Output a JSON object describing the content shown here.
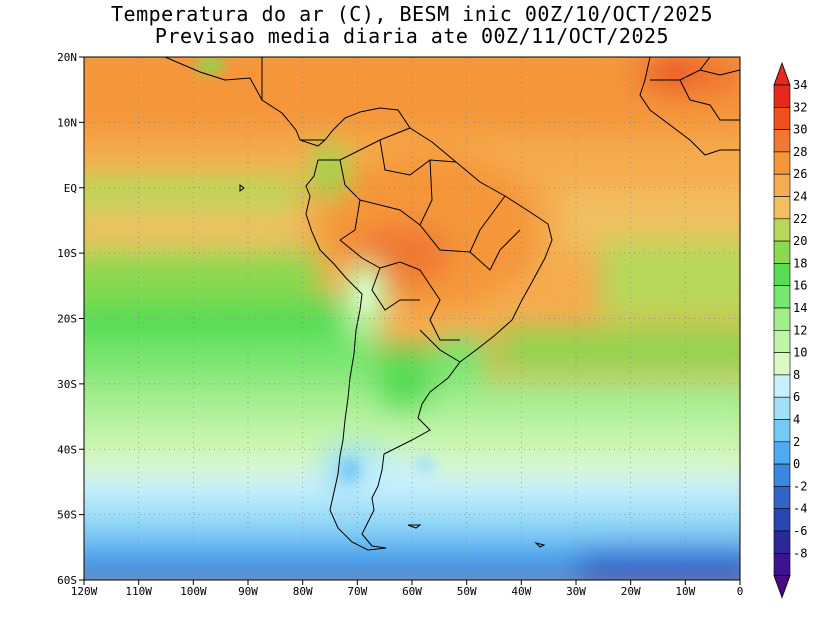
{
  "title_line1": "Temperatura do ar (C), BESM inic 00Z/10/OCT/2025",
  "title_line2": "Previsao media diaria ate 00Z/11/OCT/2025",
  "map": {
    "lon_range": [
      -120,
      0
    ],
    "lat_range": [
      -60,
      20
    ],
    "x_ticks": [
      "120W",
      "110W",
      "100W",
      "90W",
      "80W",
      "70W",
      "60W",
      "50W",
      "40W",
      "30W",
      "20W",
      "10W",
      "0"
    ],
    "y_ticks": [
      "20N",
      "10N",
      "EQ",
      "10S",
      "20S",
      "30S",
      "40S",
      "50S",
      "60S"
    ],
    "grid": "dotted"
  },
  "colorbar": {
    "labels": [
      "34",
      "32",
      "30",
      "28",
      "26",
      "24",
      "22",
      "20",
      "18",
      "16",
      "14",
      "12",
      "10",
      "8",
      "6",
      "4",
      "2",
      "0",
      "-2",
      "-4",
      "-6",
      "-8"
    ],
    "colors": [
      "#e52a1d",
      "#f0501e",
      "#f07830",
      "#f5963a",
      "#f5ac4e",
      "#f0c060",
      "#b7d85a",
      "#8cd850",
      "#55dd55",
      "#78e670",
      "#a0ee8e",
      "#c0f4a8",
      "#dcf8c4",
      "#c8f0ff",
      "#a0e0f8",
      "#78c8f4",
      "#50aaf0",
      "#3c88e0",
      "#3264cc",
      "#2a46b4",
      "#2a2a9a",
      "#3c1490"
    ],
    "top_color": "#e52a1d",
    "bottom_color": "#4a0c80"
  }
}
